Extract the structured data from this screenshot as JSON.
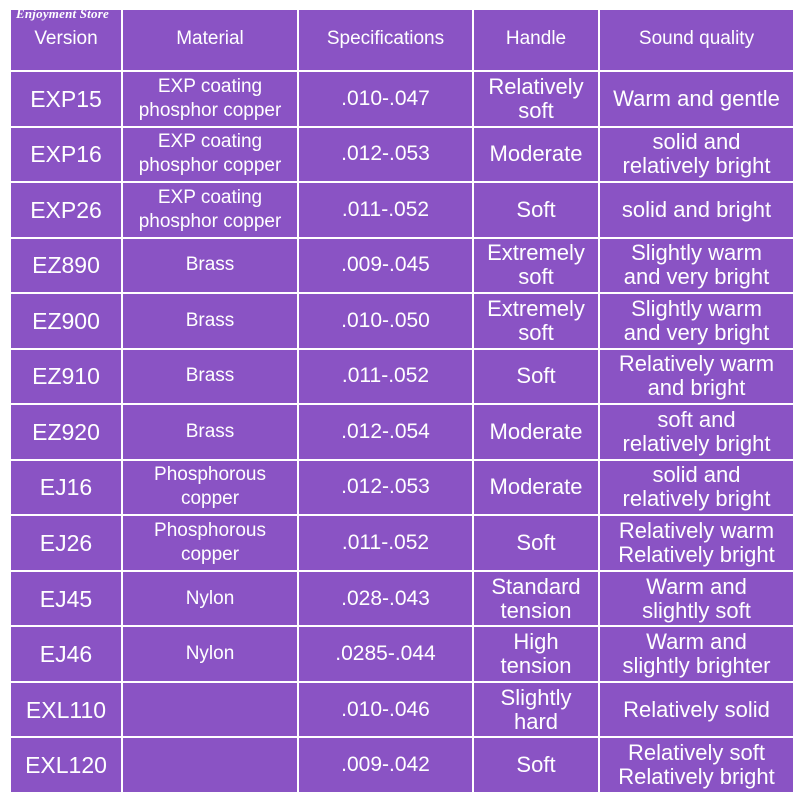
{
  "watermark": "Enjoyment Store",
  "table": {
    "headers": [
      "Version",
      "Material",
      "Specifications",
      "Handle",
      "Sound quality"
    ],
    "rows": [
      {
        "version": "EXP15",
        "material": [
          "EXP coating",
          "phosphor copper"
        ],
        "spec": ".010-.047",
        "handle": [
          "Relatively",
          "soft"
        ],
        "sound": [
          "Warm and gentle"
        ]
      },
      {
        "version": "EXP16",
        "material": [
          "EXP coating",
          "phosphor copper"
        ],
        "spec": ".012-.053",
        "handle": [
          "Moderate"
        ],
        "sound": [
          "solid and",
          "relatively bright"
        ]
      },
      {
        "version": "EXP26",
        "material": [
          "EXP coating",
          "phosphor copper"
        ],
        "spec": ".011-.052",
        "handle": [
          "Soft"
        ],
        "sound": [
          "solid and bright"
        ]
      },
      {
        "version": "EZ890",
        "material": [
          "Brass"
        ],
        "spec": ".009-.045",
        "handle": [
          "Extremely",
          "soft"
        ],
        "sound": [
          "Slightly warm",
          "and very bright"
        ]
      },
      {
        "version": "EZ900",
        "material": [
          "Brass"
        ],
        "spec": ".010-.050",
        "handle": [
          "Extremely",
          "soft"
        ],
        "sound": [
          "Slightly warm",
          "and very bright"
        ]
      },
      {
        "version": "EZ910",
        "material": [
          "Brass"
        ],
        "spec": ".011-.052",
        "handle": [
          "Soft"
        ],
        "sound": [
          "Relatively warm",
          "and bright"
        ]
      },
      {
        "version": "EZ920",
        "material": [
          "Brass"
        ],
        "spec": ".012-.054",
        "handle": [
          "Moderate"
        ],
        "sound": [
          "soft and",
          "relatively bright"
        ]
      },
      {
        "version": "EJ16",
        "material": [
          "Phosphorous",
          "copper"
        ],
        "spec": ".012-.053",
        "handle": [
          "Moderate"
        ],
        "sound": [
          "solid and",
          "relatively bright"
        ]
      },
      {
        "version": "EJ26",
        "material": [
          "Phosphorous",
          "copper"
        ],
        "spec": ".011-.052",
        "handle": [
          "Soft"
        ],
        "sound": [
          "Relatively warm",
          "Relatively bright"
        ]
      },
      {
        "version": "EJ45",
        "material": [
          "Nylon"
        ],
        "spec": ".028-.043",
        "handle": [
          "Standard",
          "tension"
        ],
        "sound": [
          "Warm and",
          "slightly soft"
        ]
      },
      {
        "version": "EJ46",
        "material": [
          "Nylon"
        ],
        "spec": ".0285-.044",
        "handle": [
          "High",
          "tension"
        ],
        "sound": [
          "Warm and",
          "slightly brighter"
        ]
      },
      {
        "version": "EXL110",
        "material": [],
        "spec": ".010-.046",
        "handle": [
          "Slightly",
          "hard"
        ],
        "sound": [
          "Relatively solid"
        ]
      },
      {
        "version": "EXL120",
        "material": [],
        "spec": ".009-.042",
        "handle": [
          "Soft"
        ],
        "sound": [
          "Relatively soft",
          "Relatively bright"
        ]
      }
    ]
  },
  "colors": {
    "cell_background": "#8a53c4",
    "grid_lines": "#ffffff",
    "text": "#ffffff"
  }
}
